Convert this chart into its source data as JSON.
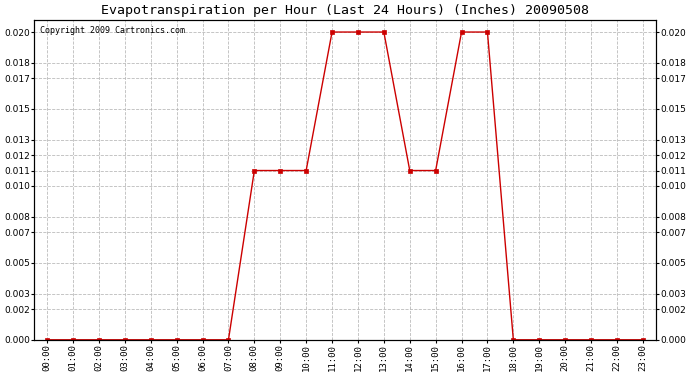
{
  "title": "Evapotranspiration per Hour (Last 24 Hours) (Inches) 20090508",
  "copyright": "Copyright 2009 Cartronics.com",
  "hours": [
    "00:00",
    "01:00",
    "02:00",
    "03:00",
    "04:00",
    "05:00",
    "06:00",
    "07:00",
    "08:00",
    "09:00",
    "10:00",
    "11:00",
    "12:00",
    "13:00",
    "14:00",
    "15:00",
    "16:00",
    "17:00",
    "18:00",
    "19:00",
    "20:00",
    "21:00",
    "22:00",
    "23:00"
  ],
  "values": [
    0.0,
    0.0,
    0.0,
    0.0,
    0.0,
    0.0,
    0.0,
    0.0,
    0.011,
    0.011,
    0.011,
    0.02,
    0.02,
    0.02,
    0.011,
    0.011,
    0.02,
    0.02,
    0.0,
    0.0,
    0.0,
    0.0,
    0.0,
    0.0
  ],
  "line_color": "#cc0000",
  "marker": "s",
  "marker_size": 2.5,
  "bg_color": "#ffffff",
  "grid_color": "#bbbbbb",
  "grid_style": "--",
  "ylim": [
    0.0,
    0.0208
  ],
  "yticks": [
    0.0,
    0.002,
    0.003,
    0.005,
    0.007,
    0.008,
    0.01,
    0.011,
    0.012,
    0.013,
    0.015,
    0.017,
    0.018,
    0.02
  ],
  "title_fontsize": 9.5,
  "copyright_fontsize": 6,
  "tick_fontsize": 6.5,
  "figwidth": 6.9,
  "figheight": 3.75,
  "dpi": 100
}
